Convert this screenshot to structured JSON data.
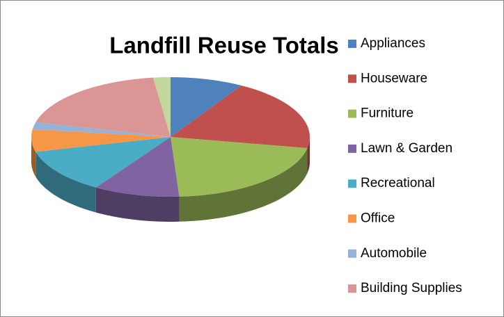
{
  "chart_data": {
    "type": "pie3d",
    "title": "Landfill Reuse Totals",
    "categories": [
      "Appliances",
      "Houseware",
      "Furniture",
      "Lawn & Garden",
      "Recreational",
      "Office",
      "Automobile",
      "Building Supplies",
      null
    ],
    "values": [
      8.5,
      19.5,
      21,
      10,
      12,
      6,
      2,
      19,
      2
    ],
    "colors": [
      "#4f81bd",
      "#c0504d",
      "#9bbb59",
      "#8064a2",
      "#4bacc6",
      "#f79646",
      "#95b3d7",
      "#d99694",
      "#c3d69b"
    ],
    "legend": "right"
  }
}
